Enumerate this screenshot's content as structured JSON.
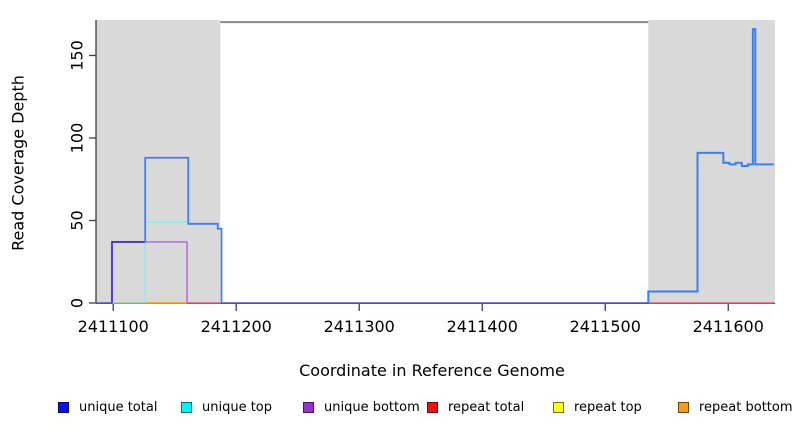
{
  "chart_data": {
    "type": "line",
    "subtype": "step-coverage",
    "title": "",
    "xlabel": "Coordinate in Reference Genome",
    "ylabel": "Read Coverage Depth",
    "xlim": [
      2411086,
      2411638
    ],
    "ylim": [
      0,
      171.5
    ],
    "x_ticks": [
      2411100,
      2411200,
      2411300,
      2411400,
      2411500,
      2411600
    ],
    "y_ticks": [
      0,
      50,
      100,
      150
    ],
    "grid": false,
    "background": "#ffffff",
    "axis_color": "#3f3f3f",
    "shaded_regions": [
      {
        "name": "left-gray-region",
        "x0": 2411086,
        "x1": 2411187,
        "color": "#d9d9d9"
      },
      {
        "name": "right-gray-region",
        "x0": 2411535,
        "x1": 2411638,
        "color": "#d9d9d9"
      }
    ],
    "top_boundary_line": {
      "name": "top-gray-line",
      "x0": 2411187,
      "x1": 2411535,
      "y": 170.2,
      "color": "#8a8a8a",
      "width": 2
    },
    "series": [
      {
        "name": "zero-left-edge",
        "color": "#5a52d8",
        "width": 1.6,
        "points": [
          [
            2411086,
            0
          ],
          [
            2411099,
            0
          ]
        ]
      },
      {
        "name": "zero-cyan-yellow-overlap",
        "color": "#96d894",
        "width": 1.6,
        "points": [
          [
            2411099,
            0
          ],
          [
            2411126,
            0
          ]
        ]
      },
      {
        "name": "repeat-bottom-zero",
        "color": "#ffa019",
        "width": 1.8,
        "points": [
          [
            2411126,
            0
          ],
          [
            2411160,
            0
          ]
        ]
      },
      {
        "name": "repeat-total-zero-left",
        "color": "#da5f86",
        "width": 1.6,
        "points": [
          [
            2411160,
            0
          ],
          [
            2411188,
            0
          ]
        ]
      },
      {
        "name": "unique-bottom",
        "color": "#ae63e6",
        "width": 1.4,
        "points": [
          [
            2411099,
            0
          ],
          [
            2411099,
            37
          ],
          [
            2411160,
            37
          ],
          [
            2411160,
            0
          ]
        ]
      },
      {
        "name": "unique-top",
        "color": "#88ebee",
        "width": 1.4,
        "points": [
          [
            2411126,
            0
          ],
          [
            2411126,
            49
          ],
          [
            2411161,
            49
          ]
        ]
      },
      {
        "name": "unique-total-and-bottom-overlap",
        "color": "#4a31d4",
        "width": 1.8,
        "points": [
          [
            2411099,
            0
          ],
          [
            2411099,
            37
          ],
          [
            2411126,
            37
          ]
        ]
      },
      {
        "name": "unique-total-left-block",
        "color": "#3d7ef4",
        "width": 1.8,
        "points": [
          [
            2411126,
            37
          ],
          [
            2411126,
            88
          ],
          [
            2411161,
            88
          ],
          [
            2411161,
            48
          ],
          [
            2411185,
            48
          ],
          [
            2411185,
            45
          ],
          [
            2411188,
            45
          ],
          [
            2411188,
            0
          ]
        ]
      },
      {
        "name": "zero-middle",
        "color": "#5a52d8",
        "width": 1.6,
        "points": [
          [
            2411188,
            0
          ],
          [
            2411535,
            0
          ]
        ]
      },
      {
        "name": "repeat-total-zero-right",
        "color": "#e25878",
        "width": 1.6,
        "points": [
          [
            2411535,
            0
          ],
          [
            2411637,
            0
          ]
        ]
      },
      {
        "name": "unique-total-right-block",
        "color": "#3d7ef4",
        "width": 2,
        "points": [
          [
            2411535,
            0
          ],
          [
            2411535,
            7
          ],
          [
            2411575,
            7
          ],
          [
            2411575,
            91
          ],
          [
            2411596,
            91
          ],
          [
            2411596,
            85
          ],
          [
            2411601,
            85
          ],
          [
            2411601,
            84
          ],
          [
            2411606,
            84
          ],
          [
            2411606,
            85
          ],
          [
            2411611,
            85
          ],
          [
            2411611,
            83
          ],
          [
            2411616,
            83
          ],
          [
            2411616,
            84
          ],
          [
            2411620,
            84
          ],
          [
            2411620,
            166
          ],
          [
            2411622,
            166
          ],
          [
            2411622,
            84
          ],
          [
            2411637,
            84
          ]
        ]
      }
    ],
    "legend": {
      "position": "bottom",
      "items": [
        {
          "label": "unique total",
          "color": "#0f0fe8"
        },
        {
          "label": "unique top",
          "color": "#00f5f5"
        },
        {
          "label": "unique bottom",
          "color": "#9a30d0"
        },
        {
          "label": "repeat total",
          "color": "#ea1212"
        },
        {
          "label": "repeat top",
          "color": "#fdfd1a"
        },
        {
          "label": "repeat bottom",
          "color": "#f79c16"
        }
      ]
    }
  }
}
